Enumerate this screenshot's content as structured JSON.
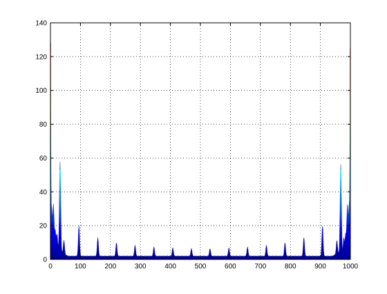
{
  "chart_data": {
    "type": "area",
    "title": "",
    "xlabel": "",
    "ylabel": "",
    "xlim": [
      0,
      1000
    ],
    "ylim": [
      0,
      140
    ],
    "xticks": [
      0,
      100,
      200,
      300,
      400,
      500,
      600,
      700,
      800,
      900,
      1000
    ],
    "yticks": [
      0,
      20,
      40,
      60,
      80,
      100,
      120,
      140
    ],
    "grid": true,
    "grid_style": "dotted",
    "colormap": "jet",
    "colormap_stops": [
      "#00008f",
      "#0000ff",
      "#0080ff",
      "#00ffff",
      "#80ff80",
      "#ffff00",
      "#ff8000",
      "#ff0000",
      "#800000"
    ],
    "peaks": [
      {
        "x": 0,
        "y": 128
      },
      {
        "x": 4,
        "y": 27
      },
      {
        "x": 10,
        "y": 28
      },
      {
        "x": 16,
        "y": 12
      },
      {
        "x": 22,
        "y": 10
      },
      {
        "x": 32,
        "y": 53
      },
      {
        "x": 45,
        "y": 8
      },
      {
        "x": 95,
        "y": 18
      },
      {
        "x": 158,
        "y": 11
      },
      {
        "x": 220,
        "y": 8
      },
      {
        "x": 282,
        "y": 6.5
      },
      {
        "x": 345,
        "y": 5.5
      },
      {
        "x": 408,
        "y": 5
      },
      {
        "x": 470,
        "y": 4.5
      },
      {
        "x": 532,
        "y": 4.5
      },
      {
        "x": 595,
        "y": 5
      },
      {
        "x": 657,
        "y": 5.5
      },
      {
        "x": 720,
        "y": 6.5
      },
      {
        "x": 782,
        "y": 8
      },
      {
        "x": 845,
        "y": 11
      },
      {
        "x": 907,
        "y": 18
      },
      {
        "x": 955,
        "y": 8
      },
      {
        "x": 968,
        "y": 53
      },
      {
        "x": 978,
        "y": 10
      },
      {
        "x": 984,
        "y": 12
      },
      {
        "x": 990,
        "y": 28
      },
      {
        "x": 996,
        "y": 27
      },
      {
        "x": 1000,
        "y": 125
      }
    ],
    "baseline": 1.5
  }
}
